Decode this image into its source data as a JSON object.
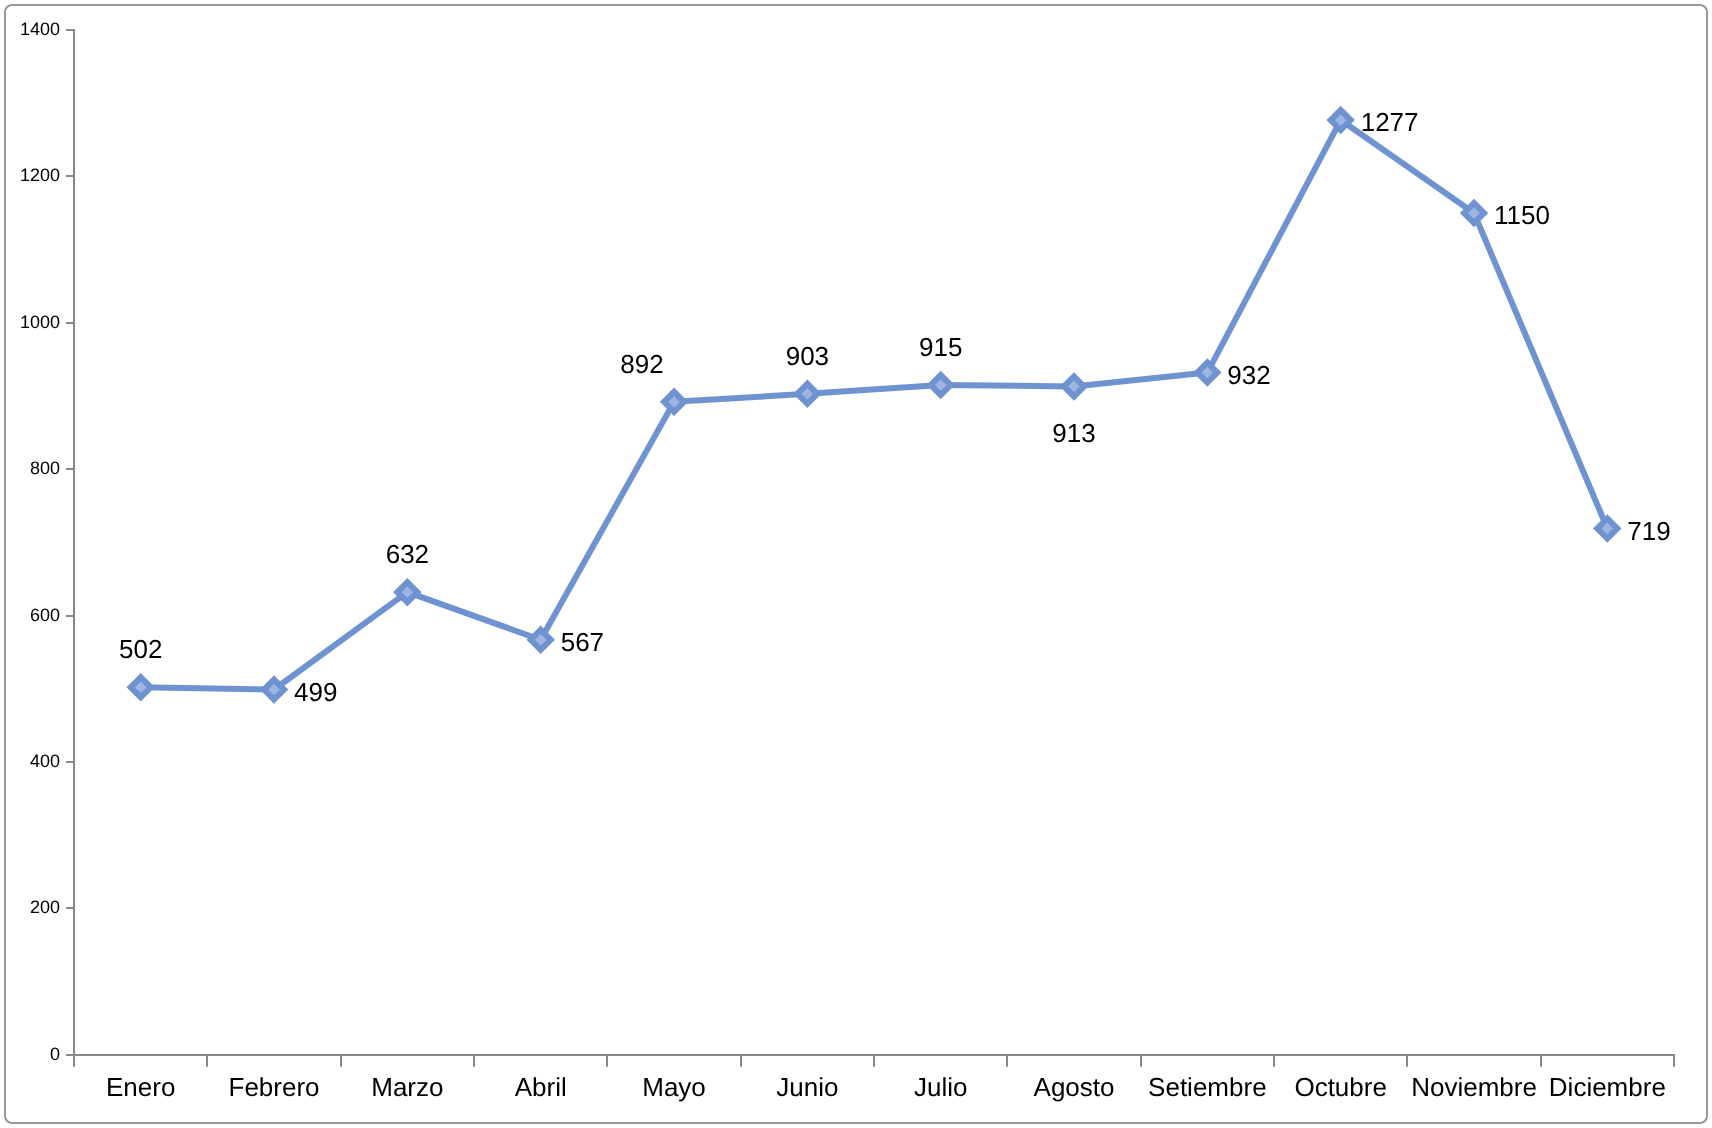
{
  "chart_data": {
    "type": "line",
    "categories": [
      "Enero",
      "Febrero",
      "Marzo",
      "Abril",
      "Mayo",
      "Junio",
      "Julio",
      "Agosto",
      "Setiembre",
      "Octubre",
      "Noviembre",
      "Diciembre"
    ],
    "series": [
      {
        "color": "#6f93d1",
        "values": [
          502,
          499,
          632,
          567,
          892,
          903,
          915,
          913,
          932,
          1277,
          1150,
          719
        ]
      }
    ],
    "ylim": [
      0,
      1400
    ],
    "yticks": [
      0,
      200,
      400,
      600,
      800,
      1000,
      1200,
      1400
    ],
    "grid": false,
    "legend": false,
    "marker": "diamond",
    "line_style": "solid",
    "data_labels": true
  }
}
